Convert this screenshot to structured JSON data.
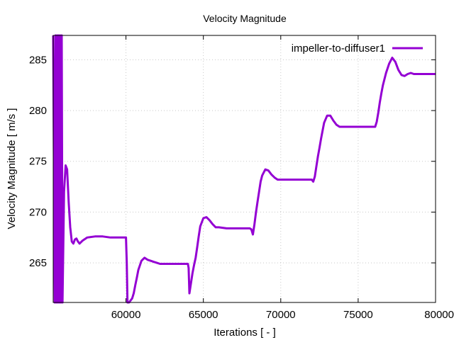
{
  "chart_data": {
    "type": "line",
    "title": "Velocity Magnitude",
    "xlabel": "Iterations [ - ]",
    "ylabel": "Velocity Magnitude [ m/s ]",
    "xlim": [
      55300,
      80000
    ],
    "ylim": [
      261.1,
      287.4
    ],
    "xticks": [
      60000,
      65000,
      70000,
      75000,
      80000
    ],
    "yticks": [
      265,
      270,
      275,
      280,
      285
    ],
    "grid": true,
    "legend_position": "top-right",
    "series": [
      {
        "name": "impeller-to-diffuser1",
        "color": "#9400d3",
        "x": [
          55300,
          55400,
          55450,
          55500,
          55550,
          55600,
          55650,
          55700,
          55750,
          55800,
          55850,
          55900,
          56000,
          56100,
          56200,
          56300,
          56400,
          56500,
          56600,
          56700,
          56800,
          56900,
          57000,
          57200,
          57500,
          58000,
          58500,
          59000,
          59500,
          60000,
          60050,
          60100,
          60200,
          60300,
          60400,
          60500,
          60600,
          60700,
          60800,
          61000,
          61200,
          61400,
          61600,
          61800,
          62000,
          62200,
          62500,
          63000,
          63500,
          64000,
          64050,
          64100,
          64200,
          64300,
          64400,
          64500,
          64600,
          64700,
          64800,
          65000,
          65200,
          65400,
          65600,
          65800,
          66000,
          66500,
          67000,
          67500,
          68000,
          68100,
          68200,
          68300,
          68400,
          68500,
          68600,
          68700,
          68800,
          69000,
          69200,
          69400,
          69600,
          69800,
          70000,
          70500,
          71000,
          71500,
          72000,
          72100,
          72200,
          72300,
          72400,
          72500,
          72600,
          72700,
          72800,
          73000,
          73200,
          73400,
          73600,
          73800,
          74000,
          74500,
          75000,
          75500,
          76000,
          76100,
          76200,
          76300,
          76400,
          76500,
          76600,
          76700,
          76800,
          77000,
          77200,
          77400,
          77600,
          77800,
          78000,
          78200,
          78400,
          78600,
          78800,
          79000,
          79500,
          80000
        ],
        "y": [
          287.4,
          261.1,
          287.4,
          261.1,
          287.4,
          261.1,
          287.4,
          261.1,
          287.4,
          261.1,
          287.4,
          261.1,
          272.0,
          274.6,
          274.2,
          271.0,
          268.5,
          267.1,
          266.9,
          267.3,
          267.4,
          267.1,
          266.9,
          267.2,
          267.5,
          267.6,
          267.6,
          267.5,
          267.5,
          267.5,
          265.0,
          261.1,
          261.1,
          261.3,
          261.5,
          262.0,
          262.8,
          263.5,
          264.3,
          265.2,
          265.5,
          265.3,
          265.2,
          265.1,
          265.0,
          264.9,
          264.9,
          264.9,
          264.9,
          264.9,
          264.5,
          262.0,
          263.0,
          264.0,
          264.8,
          265.5,
          266.5,
          267.6,
          268.6,
          269.4,
          269.5,
          269.2,
          268.8,
          268.5,
          268.5,
          268.4,
          268.4,
          268.4,
          268.4,
          268.3,
          267.8,
          268.8,
          270.0,
          271.0,
          272.0,
          273.0,
          273.6,
          274.2,
          274.1,
          273.7,
          273.4,
          273.2,
          273.2,
          273.2,
          273.2,
          273.2,
          273.2,
          273.0,
          273.5,
          274.5,
          275.5,
          276.3,
          277.2,
          278.0,
          278.8,
          279.5,
          279.5,
          279.0,
          278.6,
          278.4,
          278.4,
          278.4,
          278.4,
          278.4,
          278.4,
          278.4,
          278.9,
          279.8,
          280.8,
          281.7,
          282.5,
          283.1,
          283.7,
          284.6,
          285.2,
          284.8,
          284.0,
          283.5,
          283.4,
          283.6,
          283.7,
          283.6,
          283.6,
          283.6,
          283.6,
          283.6
        ]
      }
    ]
  }
}
